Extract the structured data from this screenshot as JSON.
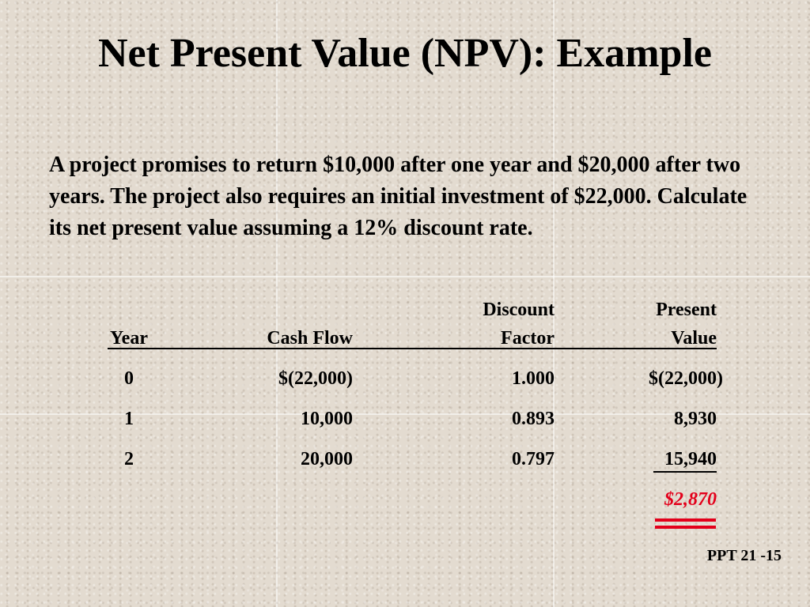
{
  "slide": {
    "title": "Net Present Value (NPV): Example",
    "problem_text": "A project promises to return $10,000 after one year and $20,000 after two years.  The project also requires an initial investment of $22,000.  Calculate its net present value assuming a 12% discount rate."
  },
  "table": {
    "headers": {
      "year": "Year",
      "cash_flow": "Cash Flow",
      "discount_factor_line1": "Discount",
      "discount_factor_line2": "Factor",
      "present_value_line1": "Present",
      "present_value_line2": "Value"
    },
    "rows": [
      {
        "year": "0",
        "cash_flow": "$(22,000)",
        "discount_factor": "1.000",
        "present_value": "$(22,000)"
      },
      {
        "year": "1",
        "cash_flow": "10,000",
        "discount_factor": "0.893",
        "present_value": "8,930"
      },
      {
        "year": "2",
        "cash_flow": "20,000",
        "discount_factor": "0.797",
        "present_value": "15,940"
      }
    ],
    "total": "$2,870",
    "total_color": "#e3001b"
  },
  "footer": {
    "slide_number": "PPT 21 -15"
  },
  "colors": {
    "background": "#e3dbd0",
    "text": "#000000",
    "accent": "#e3001b"
  }
}
